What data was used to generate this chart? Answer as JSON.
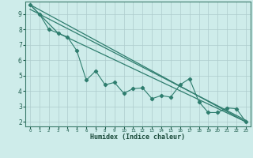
{
  "xlabel": "Humidex (Indice chaleur)",
  "bg_color": "#ceecea",
  "grid_color": "#aecccc",
  "line_color": "#2e7d6e",
  "xlim": [
    -0.5,
    23.5
  ],
  "ylim": [
    1.7,
    9.8
  ],
  "xticks": [
    0,
    1,
    2,
    3,
    4,
    5,
    6,
    7,
    8,
    9,
    10,
    11,
    12,
    13,
    14,
    15,
    16,
    17,
    18,
    19,
    20,
    21,
    22,
    23
  ],
  "yticks": [
    2,
    3,
    4,
    5,
    6,
    7,
    8,
    9
  ],
  "series1_x": [
    0,
    1,
    2,
    3,
    4,
    5,
    6,
    7,
    8,
    9,
    10,
    11,
    12,
    13,
    14,
    15,
    16,
    17,
    18,
    19,
    20,
    21,
    22,
    23
  ],
  "series1_y": [
    9.6,
    9.0,
    8.0,
    7.75,
    7.5,
    6.6,
    4.7,
    5.3,
    4.4,
    4.55,
    3.85,
    4.15,
    4.2,
    3.5,
    3.7,
    3.6,
    4.4,
    4.8,
    3.3,
    2.6,
    2.6,
    2.9,
    2.85,
    2.0
  ],
  "series2_x": [
    0,
    3,
    23
  ],
  "series2_y": [
    9.6,
    7.75,
    2.0
  ],
  "series3_x": [
    0,
    23
  ],
  "series3_y": [
    9.6,
    2.0
  ],
  "series4_x": [
    0,
    23
  ],
  "series4_y": [
    9.3,
    2.1
  ]
}
